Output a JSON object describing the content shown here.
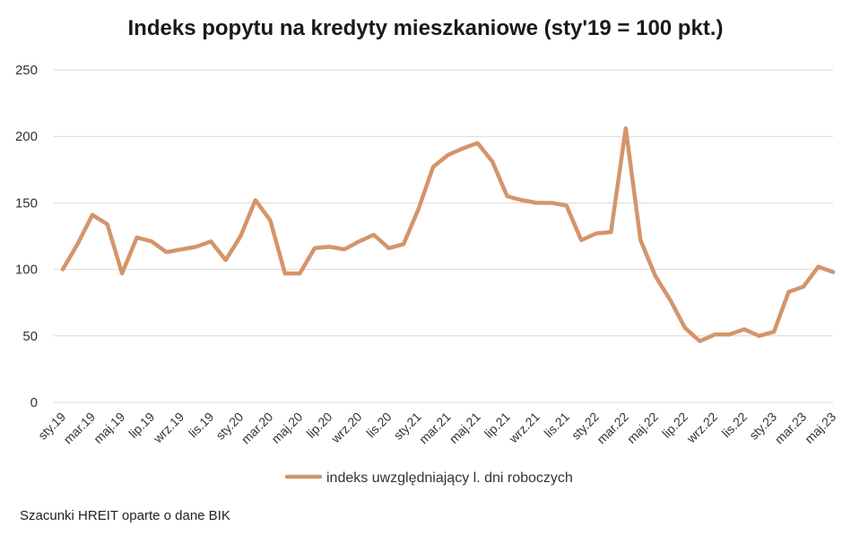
{
  "chart_data": {
    "type": "line",
    "title": "Indeks popytu na kredyty mieszkaniowe (sty'19 = 100 pkt.)",
    "xlabel": "",
    "ylabel": "",
    "ylim": [
      0,
      250
    ],
    "yticks": [
      0,
      50,
      100,
      150,
      200,
      250
    ],
    "grid": true,
    "legend_position": "bottom",
    "x": [
      "sty.19",
      "lut.19",
      "mar.19",
      "kwi.19",
      "maj.19",
      "cze.19",
      "lip.19",
      "sie.19",
      "wrz.19",
      "paź.19",
      "lis.19",
      "gru.19",
      "sty.20",
      "lut.20",
      "mar.20",
      "kwi.20",
      "maj.20",
      "cze.20",
      "lip.20",
      "sie.20",
      "wrz.20",
      "paź.20",
      "lis.20",
      "gru.20",
      "sty.21",
      "lut.21",
      "mar.21",
      "kwi.21",
      "maj.21",
      "cze.21",
      "lip.21",
      "sie.21",
      "wrz.21",
      "paź.21",
      "lis.21",
      "gru.21",
      "sty.22",
      "lut.22",
      "mar.22",
      "kwi.22",
      "maj.22",
      "cze.22",
      "lip.22",
      "sie.22",
      "wrz.22",
      "paź.22",
      "lis.22",
      "gru.22",
      "sty.23",
      "lut.23",
      "mar.23",
      "kwi.23",
      "maj.23"
    ],
    "tick_labels": [
      "sty.19",
      "mar.19",
      "maj.19",
      "lip.19",
      "wrz.19",
      "lis.19",
      "sty.20",
      "mar.20",
      "maj.20",
      "lip.20",
      "wrz.20",
      "lis.20",
      "sty.21",
      "mar.21",
      "maj.21",
      "lip.21",
      "wrz.21",
      "lis.21",
      "sty.22",
      "mar.22",
      "maj.22",
      "lip.22",
      "wrz.22",
      "lis.22",
      "sty.23",
      "mar.23",
      "maj.23"
    ],
    "series": [
      {
        "name": "indeks uwzględniający l. dni roboczych",
        "color": "#D4956A",
        "values": [
          100,
          119,
          141,
          134,
          97,
          124,
          121,
          113,
          115,
          117,
          121,
          107,
          125,
          152,
          137,
          97,
          97,
          116,
          117,
          115,
          121,
          126,
          116,
          119,
          145,
          177,
          186,
          191,
          195,
          181,
          155,
          152,
          150,
          150,
          148,
          122,
          127,
          128,
          206,
          122,
          95,
          77,
          56,
          46,
          51,
          51,
          55,
          50,
          53,
          83,
          87,
          102,
          98
        ]
      }
    ]
  },
  "source_note": "Szacunki HREIT oparte o dane BIK"
}
